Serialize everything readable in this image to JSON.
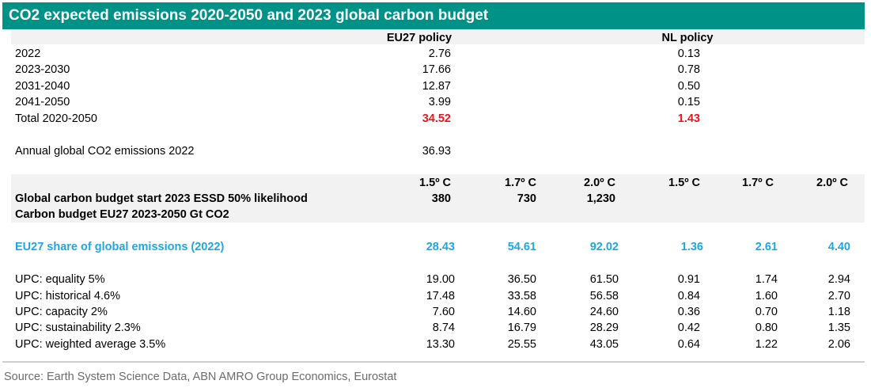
{
  "title": "CO2 expected emissions 2020-2050 and 2023 global carbon budget",
  "colors": {
    "title_bg": "#009286",
    "total": "#e8161c",
    "share": "#1fa6dd",
    "band": "#f2f2f2"
  },
  "policy_headers": {
    "eu": "EU27 policy",
    "nl": "NL policy"
  },
  "emissions_rows": [
    {
      "label": "2022",
      "eu": "2.76",
      "nl": "0.13"
    },
    {
      "label": "2023-2030",
      "eu": "17.66",
      "nl": "0.78"
    },
    {
      "label": "2031-2040",
      "eu": "12.87",
      "nl": "0.50"
    },
    {
      "label": "2041-2050",
      "eu": "3.99",
      "nl": "0.15"
    }
  ],
  "total_row": {
    "label": "Total 2020-2050",
    "eu": "34.52",
    "nl": "1.43"
  },
  "annual": {
    "label": "Annual global CO2 emissions 2022",
    "value": "36.93"
  },
  "temp_headers": [
    "1.5º C",
    "1.7º C",
    "2.0º C",
    "1.5º C",
    "1.7º C",
    "2.0º C"
  ],
  "budget_row": {
    "label": "Global carbon budget start 2023 ESSD 50% likelihood",
    "values": [
      "380",
      "730",
      "1,230"
    ]
  },
  "budget_subtitle": "Carbon budget EU27 2023-2050 Gt CO2",
  "share_row": {
    "label": "EU27 share of global emissions (2022)",
    "values": [
      "28.43",
      "54.61",
      "92.02",
      "1.36",
      "2.61",
      "4.40"
    ]
  },
  "upc_rows": [
    {
      "label": "UPC: equality 5%",
      "values": [
        "19.00",
        "36.50",
        "61.50",
        "0.91",
        "1.74",
        "2.94"
      ]
    },
    {
      "label": "UPC: historical 4.6%",
      "values": [
        "17.48",
        "33.58",
        "56.58",
        "0.84",
        "1.60",
        "2.70"
      ]
    },
    {
      "label": "UPC: capacity 2%",
      "values": [
        "7.60",
        "14.60",
        "24.60",
        "0.36",
        "0.70",
        "1.18"
      ]
    },
    {
      "label": "UPC: sustainability 2.3%",
      "values": [
        "8.74",
        "16.79",
        "28.29",
        "0.42",
        "0.80",
        "1.35"
      ]
    },
    {
      "label": "UPC: weighted average 3.5%",
      "values": [
        "13.30",
        "25.55",
        "43.05",
        "0.64",
        "1.22",
        "2.06"
      ]
    }
  ],
  "source": "Source: Earth System Science Data, ABN AMRO Group Economics, Eurostat"
}
